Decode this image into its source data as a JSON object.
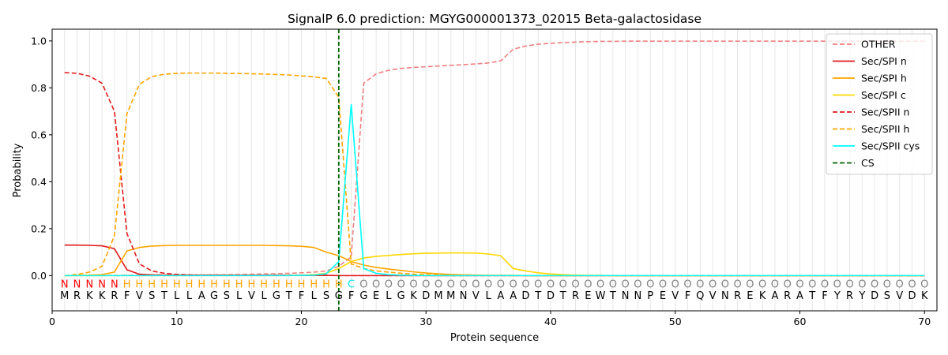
{
  "chart_data": {
    "type": "line",
    "title": "SignalP 6.0 prediction: MGYG000001373_02015 Beta-galactosidase",
    "xlabel": "Protein sequence",
    "ylabel": "Probability",
    "xlim": [
      0,
      71
    ],
    "ylim": [
      -0.15,
      1.05
    ],
    "x_ticks": [
      0,
      10,
      20,
      30,
      40,
      50,
      60,
      70
    ],
    "y_ticks": [
      0.0,
      0.2,
      0.4,
      0.6,
      0.8,
      1.0
    ],
    "x_tick_labels": [
      "0",
      "10",
      "20",
      "30",
      "40",
      "50",
      "60",
      "70"
    ],
    "y_tick_labels": [
      "0.0",
      "0.2",
      "0.4",
      "0.6",
      "0.8",
      "1.0"
    ],
    "grid": "vertical at each residue",
    "legend_position": "top-right",
    "sequence": [
      "M",
      "R",
      "K",
      "K",
      "R",
      "F",
      "V",
      "S",
      "T",
      "L",
      "L",
      "A",
      "G",
      "S",
      "L",
      "V",
      "L",
      "G",
      "T",
      "F",
      "L",
      "S",
      "G",
      "F",
      "G",
      "E",
      "L",
      "G",
      "K",
      "D",
      "M",
      "M",
      "N",
      "V",
      "L",
      "A",
      "A",
      "D",
      "T",
      "D",
      "T",
      "R",
      "E",
      "W",
      "T",
      "N",
      "N",
      "P",
      "E",
      "V",
      "F",
      "Q",
      "V",
      "N",
      "R",
      "E",
      "K",
      "A",
      "R",
      "A",
      "T",
      "F",
      "Y",
      "R",
      "Y",
      "D",
      "S",
      "V",
      "D",
      "K"
    ],
    "labels": [
      "N",
      "N",
      "N",
      "N",
      "N",
      "H",
      "H",
      "H",
      "H",
      "H",
      "H",
      "H",
      "H",
      "H",
      "H",
      "H",
      "H",
      "H",
      "H",
      "H",
      "H",
      "H",
      "H",
      "C",
      "O",
      "O",
      "O",
      "O",
      "O",
      "O",
      "O",
      "O",
      "O",
      "O",
      "O",
      "O",
      "O",
      "O",
      "O",
      "O",
      "O",
      "O",
      "O",
      "O",
      "O",
      "O",
      "O",
      "O",
      "O",
      "O",
      "O",
      "O",
      "O",
      "O",
      "O",
      "O",
      "O",
      "O",
      "O",
      "O",
      "O",
      "O",
      "O",
      "O",
      "O",
      "O",
      "O",
      "O",
      "O",
      "O"
    ],
    "label_colors": {
      "N": "#ff0000",
      "H": "#ffa500",
      "C": "#00e5ee",
      "O": "#808080"
    },
    "cs_position": 23,
    "series": [
      {
        "name": "OTHER",
        "color": "#f08080",
        "dash": "dashed",
        "values": [
          0.0,
          0.0,
          0.0,
          0.001,
          0.001,
          0.002,
          0.002,
          0.003,
          0.003,
          0.003,
          0.003,
          0.003,
          0.004,
          0.004,
          0.005,
          0.006,
          0.007,
          0.008,
          0.01,
          0.012,
          0.015,
          0.02,
          0.04,
          0.08,
          0.82,
          0.86,
          0.875,
          0.883,
          0.887,
          0.89,
          0.893,
          0.896,
          0.899,
          0.902,
          0.906,
          0.915,
          0.965,
          0.978,
          0.986,
          0.99,
          0.993,
          0.995,
          0.997,
          0.998,
          0.998,
          0.999,
          0.999,
          0.999,
          0.999,
          0.999,
          0.999,
          0.999,
          0.999,
          0.999,
          0.999,
          0.999,
          0.999,
          0.999,
          0.999,
          0.999,
          0.999,
          0.999,
          0.999,
          0.999,
          0.999,
          0.999,
          0.999,
          0.999,
          0.999,
          0.999
        ]
      },
      {
        "name": "Sec/SPI n",
        "color": "#e31a1c",
        "dash": "solid",
        "values": [
          0.13,
          0.13,
          0.129,
          0.127,
          0.115,
          0.025,
          0.006,
          0.003,
          0.002,
          0.001,
          0.001,
          0.001,
          0.001,
          0.001,
          0.001,
          0.001,
          0.001,
          0.001,
          0.001,
          0.001,
          0.001,
          0.001,
          0.0,
          0.0,
          0.0,
          0.0,
          0.0,
          0.0,
          0.0,
          0.0,
          0.0,
          0.0,
          0.0,
          0.0,
          0.0,
          0.0,
          0.0,
          0.0,
          0.0,
          0.0,
          0.0,
          0.0,
          0.0,
          0.0,
          0.0,
          0.0,
          0.0,
          0.0,
          0.0,
          0.0,
          0.0,
          0.0,
          0.0,
          0.0,
          0.0,
          0.0,
          0.0,
          0.0,
          0.0,
          0.0,
          0.0,
          0.0,
          0.0,
          0.0,
          0.0,
          0.0,
          0.0,
          0.0,
          0.0,
          0.0
        ]
      },
      {
        "name": "Sec/SPI h",
        "color": "#ffa500",
        "dash": "solid",
        "values": [
          0.0,
          0.001,
          0.002,
          0.004,
          0.015,
          0.105,
          0.12,
          0.126,
          0.128,
          0.129,
          0.129,
          0.129,
          0.129,
          0.129,
          0.129,
          0.129,
          0.129,
          0.128,
          0.127,
          0.125,
          0.12,
          0.1,
          0.085,
          0.06,
          0.045,
          0.035,
          0.028,
          0.022,
          0.016,
          0.011,
          0.008,
          0.005,
          0.003,
          0.002,
          0.001,
          0.001,
          0.001,
          0.0,
          0.0,
          0.0,
          0.0,
          0.0,
          0.0,
          0.0,
          0.0,
          0.0,
          0.0,
          0.0,
          0.0,
          0.0,
          0.0,
          0.0,
          0.0,
          0.0,
          0.0,
          0.0,
          0.0,
          0.0,
          0.0,
          0.0,
          0.0,
          0.0,
          0.0,
          0.0,
          0.0,
          0.0,
          0.0,
          0.0,
          0.0,
          0.0
        ]
      },
      {
        "name": "Sec/SPI c",
        "color": "#ffd700",
        "dash": "solid",
        "values": [
          0.0,
          0.0,
          0.0,
          0.0,
          0.0,
          0.0,
          0.0,
          0.0,
          0.0,
          0.0,
          0.0,
          0.0,
          0.0,
          0.0,
          0.0,
          0.0,
          0.0,
          0.0,
          0.001,
          0.002,
          0.004,
          0.01,
          0.03,
          0.06,
          0.075,
          0.082,
          0.086,
          0.09,
          0.093,
          0.095,
          0.096,
          0.097,
          0.097,
          0.096,
          0.092,
          0.085,
          0.03,
          0.02,
          0.012,
          0.007,
          0.004,
          0.002,
          0.001,
          0.001,
          0.0,
          0.0,
          0.0,
          0.0,
          0.0,
          0.0,
          0.0,
          0.0,
          0.0,
          0.0,
          0.0,
          0.0,
          0.0,
          0.0,
          0.0,
          0.0,
          0.0,
          0.0,
          0.0,
          0.0,
          0.0,
          0.0,
          0.0,
          0.0,
          0.0,
          0.0
        ]
      },
      {
        "name": "Sec/SPII n",
        "color": "#e31a1c",
        "dash": "dashed",
        "values": [
          0.865,
          0.862,
          0.85,
          0.82,
          0.7,
          0.18,
          0.05,
          0.02,
          0.01,
          0.005,
          0.003,
          0.002,
          0.002,
          0.001,
          0.001,
          0.001,
          0.001,
          0.001,
          0.001,
          0.001,
          0.001,
          0.001,
          0.0,
          0.0,
          0.0,
          0.0,
          0.0,
          0.0,
          0.0,
          0.0,
          0.0,
          0.0,
          0.0,
          0.0,
          0.0,
          0.0,
          0.0,
          0.0,
          0.0,
          0.0,
          0.0,
          0.0,
          0.0,
          0.0,
          0.0,
          0.0,
          0.0,
          0.0,
          0.0,
          0.0,
          0.0,
          0.0,
          0.0,
          0.0,
          0.0,
          0.0,
          0.0,
          0.0,
          0.0,
          0.0,
          0.0,
          0.0,
          0.0,
          0.0,
          0.0,
          0.0,
          0.0,
          0.0,
          0.0,
          0.0
        ]
      },
      {
        "name": "Sec/SPII h",
        "color": "#ffa500",
        "dash": "dashed",
        "values": [
          0.0,
          0.005,
          0.015,
          0.04,
          0.17,
          0.69,
          0.815,
          0.848,
          0.858,
          0.862,
          0.863,
          0.863,
          0.863,
          0.862,
          0.861,
          0.86,
          0.859,
          0.857,
          0.855,
          0.851,
          0.847,
          0.84,
          0.76,
          0.05,
          0.03,
          0.02,
          0.015,
          0.01,
          0.006,
          0.004,
          0.003,
          0.002,
          0.001,
          0.001,
          0.001,
          0.001,
          0.0,
          0.0,
          0.0,
          0.0,
          0.0,
          0.0,
          0.0,
          0.0,
          0.0,
          0.0,
          0.0,
          0.0,
          0.0,
          0.0,
          0.0,
          0.0,
          0.0,
          0.0,
          0.0,
          0.0,
          0.0,
          0.0,
          0.0,
          0.0,
          0.0,
          0.0,
          0.0,
          0.0,
          0.0,
          0.0,
          0.0,
          0.0,
          0.0,
          0.0
        ]
      },
      {
        "name": "Sec/SPII cys",
        "color": "#00ffff",
        "dash": "solid",
        "values": [
          0.0,
          0.0,
          0.0,
          0.0,
          0.0,
          0.0,
          0.0,
          0.0,
          0.0,
          0.0,
          0.0,
          0.0,
          0.0,
          0.0,
          0.0,
          0.0,
          0.0,
          0.0,
          0.0,
          0.001,
          0.002,
          0.008,
          0.06,
          0.73,
          0.03,
          0.01,
          0.004,
          0.002,
          0.001,
          0.0,
          0.0,
          0.0,
          0.0,
          0.0,
          0.0,
          0.0,
          0.0,
          0.0,
          0.0,
          0.0,
          0.0,
          0.0,
          0.0,
          0.0,
          0.0,
          0.0,
          0.0,
          0.0,
          0.0,
          0.0,
          0.0,
          0.0,
          0.0,
          0.0,
          0.0,
          0.0,
          0.0,
          0.0,
          0.0,
          0.0,
          0.0,
          0.0,
          0.0,
          0.0,
          0.0,
          0.0,
          0.0,
          0.0,
          0.0,
          0.0
        ]
      },
      {
        "name": "CS",
        "color": "#006400",
        "dash": "dashed",
        "type": "vline",
        "x": 23
      }
    ]
  }
}
